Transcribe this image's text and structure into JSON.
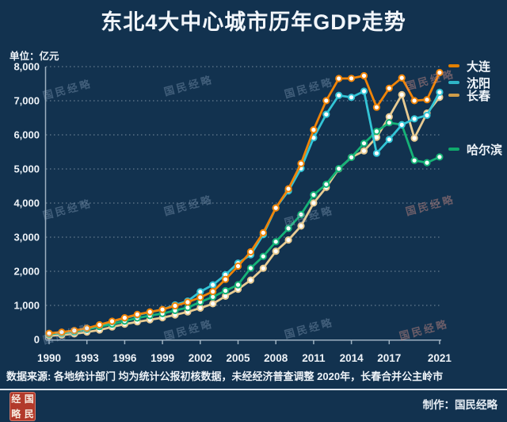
{
  "title": "东北4大中心城市历年GDP走势",
  "unit_label": "单位：亿元",
  "watermark": "国民经略",
  "footer": {
    "source_note": "数据来源: 各地统计部门  均为统计公报初核数据，未经经济普查调整  2020年，长春合并公主岭市",
    "credit": "制作：国民经略"
  },
  "seal": {
    "chars": [
      "经",
      "国",
      "略",
      "民"
    ]
  },
  "colors": {
    "background": "#12324f",
    "title_text": "#f2f6fb",
    "axis": "#9db0c0",
    "gridline": "rgba(206,216,226,0.55)",
    "tick_text": "#eef3f8",
    "seal_red": "#b23a2b"
  },
  "chart_data": {
    "type": "line",
    "title": "东北4大中心城市历年GDP走势",
    "ylabel": "亿元",
    "ylim": [
      0,
      8000
    ],
    "grid": "dotted-horizontal",
    "legend_position": "right",
    "x": [
      1990,
      1991,
      1992,
      1993,
      1994,
      1995,
      1996,
      1997,
      1998,
      1999,
      2000,
      2001,
      2002,
      2003,
      2004,
      2005,
      2006,
      2007,
      2008,
      2009,
      2010,
      2011,
      2012,
      2013,
      2014,
      2015,
      2016,
      2017,
      2018,
      2019,
      2020,
      2021
    ],
    "x_tick_labels": [
      "1990",
      "1993",
      "1996",
      "1999",
      "2002",
      "2005",
      "2008",
      "2011",
      "2014",
      "2017",
      "2021"
    ],
    "x_tick_years": [
      1990,
      1993,
      1996,
      1999,
      2002,
      2005,
      2008,
      2011,
      2014,
      2017,
      2021
    ],
    "y_tick_labels": [
      "0",
      "1,000",
      "2,000",
      "3,000",
      "4,000",
      "5,000",
      "6,000",
      "7,000",
      "8,000"
    ],
    "y_tick_values": [
      0,
      1000,
      2000,
      3000,
      4000,
      5000,
      6000,
      7000,
      8000
    ],
    "series": [
      {
        "id": "dalian",
        "name": "大连",
        "color": "#f08408",
        "legend_color": "#e07f00",
        "marker_fill": "#ffffff",
        "values": [
          182,
          216,
          262,
          331,
          430,
          536,
          637,
          735,
          810,
          878,
          988,
          1096,
          1236,
          1406,
          1762,
          2152,
          2570,
          3131,
          3858,
          4418,
          5158,
          6150,
          7003,
          7651,
          7656,
          7732,
          6810,
          7364,
          7669,
          7002,
          7030,
          7826
        ]
      },
      {
        "id": "shenyang",
        "name": "沈阳",
        "color": "#33c5d6",
        "legend_color": "#2fb4c6",
        "marker_fill": "#ffffff",
        "values": [
          175,
          202,
          248,
          318,
          420,
          522,
          628,
          720,
          800,
          876,
          1013,
          1125,
          1400,
          1602,
          1900,
          2240,
          2483,
          3074,
          3860,
          4359,
          5017,
          5915,
          6603,
          7159,
          7099,
          7280,
          5460,
          5865,
          6292,
          6470,
          6572,
          7250
        ]
      },
      {
        "id": "changchun",
        "name": "长春",
        "color": "#e8cb92",
        "legend_color": "#cf9d49",
        "marker_fill": "#ffffff",
        "values": [
          110,
          130,
          165,
          218,
          280,
          368,
          450,
          519,
          580,
          640,
          720,
          810,
          920,
          1050,
          1270,
          1475,
          1741,
          2089,
          2588,
          2919,
          3329,
          4003,
          4457,
          5003,
          5342,
          5530,
          5928,
          6530,
          7176,
          5904,
          6638,
          7103
        ]
      },
      {
        "id": "harbin",
        "name": "哈尔滨",
        "color": "#16b377",
        "legend_color": "#0fa96c",
        "marker_fill": "#ffffff",
        "values": [
          158,
          185,
          230,
          295,
          380,
          450,
          540,
          630,
          700,
          760,
          850,
          936,
          1100,
          1250,
          1430,
          1605,
          2094,
          2437,
          2868,
          3258,
          3665,
          4243,
          4550,
          5010,
          5340,
          5751,
          6102,
          6355,
          6301,
          5249,
          5184,
          5352
        ]
      }
    ]
  }
}
